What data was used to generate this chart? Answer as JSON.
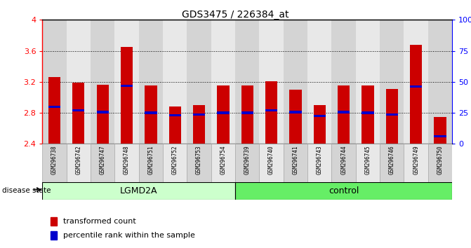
{
  "title": "GDS3475 / 226384_at",
  "samples": [
    "GSM296738",
    "GSM296742",
    "GSM296747",
    "GSM296748",
    "GSM296751",
    "GSM296752",
    "GSM296753",
    "GSM296754",
    "GSM296739",
    "GSM296740",
    "GSM296741",
    "GSM296743",
    "GSM296744",
    "GSM296745",
    "GSM296746",
    "GSM296749",
    "GSM296750"
  ],
  "transformed_count": [
    3.26,
    3.19,
    3.16,
    3.65,
    3.15,
    2.88,
    2.9,
    3.15,
    3.15,
    3.21,
    3.1,
    2.9,
    3.15,
    3.15,
    3.11,
    3.68,
    2.75
  ],
  "percentile_rank": [
    2.88,
    2.83,
    2.81,
    3.15,
    2.8,
    2.77,
    2.78,
    2.8,
    2.8,
    2.83,
    2.81,
    2.76,
    2.81,
    2.8,
    2.78,
    3.14,
    2.5
  ],
  "groups": [
    {
      "name": "LGMD2A",
      "start": 0,
      "end": 8,
      "color": "#ccffcc"
    },
    {
      "name": "control",
      "start": 8,
      "end": 17,
      "color": "#66ee66"
    }
  ],
  "bar_color": "#cc0000",
  "percentile_color": "#0000cc",
  "ymin": 2.4,
  "ymax": 4.0,
  "yticks": [
    2.4,
    2.8,
    3.2,
    3.6,
    4.0
  ],
  "ytick_labels": [
    "2.4",
    "2.8",
    "3.2",
    "3.6",
    "4"
  ],
  "right_yticks": [
    0,
    25,
    50,
    75,
    100
  ],
  "right_ytick_labels": [
    "0",
    "25",
    "50",
    "75",
    "100%"
  ],
  "bar_width": 0.5,
  "col_bg_even": "#d4d4d4",
  "col_bg_odd": "#e8e8e8",
  "plot_bg": "#ffffff",
  "legend_tc": "transformed count",
  "legend_pr": "percentile rank within the sample"
}
